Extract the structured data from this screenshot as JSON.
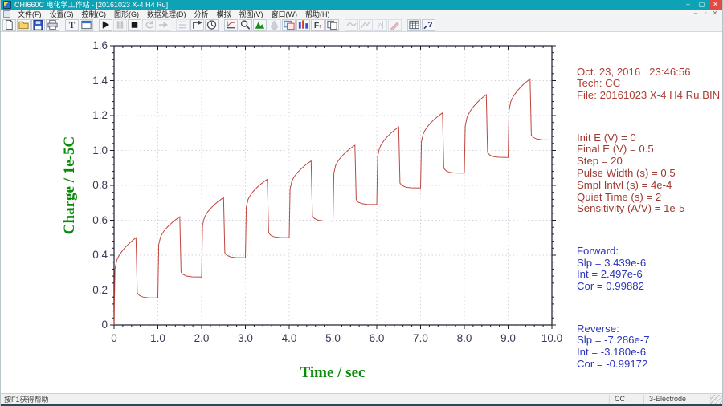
{
  "window": {
    "title": "CHI660C 电化学工作站 - [20161023 X-4 H4 Ru]",
    "controls": {
      "minimize": "–",
      "maximize": "▢",
      "close": "✕"
    },
    "mdi_controls": {
      "minimize": "–",
      "restore": "▫",
      "close": "✕"
    }
  },
  "menu": {
    "items": [
      "文件(F)",
      "设置(S)",
      "控制(C)",
      "图形(G)",
      "数据处理(D)",
      "分析",
      "模拟",
      "视图(V)",
      "窗口(W)",
      "帮助(H)"
    ]
  },
  "toolbar": {
    "items": [
      "New",
      "Open",
      "Save As",
      "Print",
      "Technique",
      "Parameters",
      "Run",
      "Pause",
      "Stop",
      "Reverse",
      "Continue",
      "Cell",
      "Macro",
      "Timer",
      "Zoom",
      "Manual Result",
      "Peak Definition",
      "Drop Shape",
      "Overlay Plots",
      "Color and Legend",
      "Font",
      "Copy Graph",
      "Smooth",
      "Derivative",
      "Integration",
      "Baseline",
      "Data Listing",
      "Help"
    ]
  },
  "panel": {
    "header": [
      "Oct. 23, 2016   23:46:56",
      "Tech: CC",
      "File: 20161023 X-4 H4 Ru.BIN"
    ],
    "params": [
      "Init E (V) = 0",
      "Final E (V) = 0.5",
      "Step = 20",
      "Pulse Width (s) = 0.5",
      "Smpl Intvl (s) = 4e-4",
      "Quiet Time (s) = 2",
      "Sensitivity (A/V) = 1e-5"
    ],
    "forward": [
      "Forward:",
      "Slp = 3.439e-6",
      "Int = 2.497e-6",
      "Cor = 0.99882"
    ],
    "reverse": [
      "Reverse:",
      "Slp = -7.286e-7",
      "Int = -3.180e-6",
      "Cor = -0.99172"
    ]
  },
  "status": {
    "help_text": "按F1获得帮助",
    "fields": [
      "CC",
      "3-Electrode"
    ]
  },
  "colors": {
    "titlebar": "#0ea2b5",
    "curve": "#c0453e",
    "frame": "#1c1c2e",
    "grid": "#c9cbd8",
    "tick_text": "#3a3a55",
    "axis_title_green": "#0a8a0a",
    "header_red": "#b13c34",
    "param_maroon": "#9e3a32",
    "result_blue": "#2a35bb"
  },
  "chart_data": {
    "type": "line",
    "title": "",
    "xlabel": "Time / sec",
    "ylabel": "Charge / 1e-5C",
    "xlim": [
      0,
      10
    ],
    "ylim": [
      0,
      1.6
    ],
    "xticks": [
      0,
      1,
      2,
      3,
      4,
      5,
      6,
      7,
      8,
      9,
      10
    ],
    "xtick_labels": [
      "0",
      "1.0",
      "2.0",
      "3.0",
      "4.0",
      "5.0",
      "6.0",
      "7.0",
      "8.0",
      "9.0",
      "10.0"
    ],
    "yticks": [
      0,
      0.2,
      0.4,
      0.6,
      0.8,
      1.0,
      1.2,
      1.4,
      1.6
    ],
    "ytick_labels": [
      "0",
      "0.2",
      "0.4",
      "0.6",
      "0.8",
      "1.0",
      "1.2",
      "1.4",
      "1.6"
    ],
    "minor_per_major": 5,
    "grid": "dotted",
    "legend": "none",
    "pulse_width": 0.5,
    "series_note": "chronocoulometric step train: each 1 s cycle rises (forward step) for 0.5 s to peak then falls (reverse step) to settle level",
    "cycles": [
      {
        "jump": 0.32,
        "peak": 0.5,
        "settle": 0.155
      },
      {
        "jump": 0.46,
        "peak": 0.62,
        "settle": 0.275
      },
      {
        "jump": 0.57,
        "peak": 0.73,
        "settle": 0.385
      },
      {
        "jump": 0.675,
        "peak": 0.835,
        "settle": 0.5
      },
      {
        "jump": 0.78,
        "peak": 0.94,
        "settle": 0.595
      },
      {
        "jump": 0.87,
        "peak": 1.03,
        "settle": 0.69
      },
      {
        "jump": 0.965,
        "peak": 1.135,
        "settle": 0.785
      },
      {
        "jump": 1.05,
        "peak": 1.215,
        "settle": 0.87
      },
      {
        "jump": 1.14,
        "peak": 1.32,
        "settle": 0.96
      },
      {
        "jump": 1.23,
        "peak": 1.41,
        "settle": 1.06
      }
    ]
  }
}
